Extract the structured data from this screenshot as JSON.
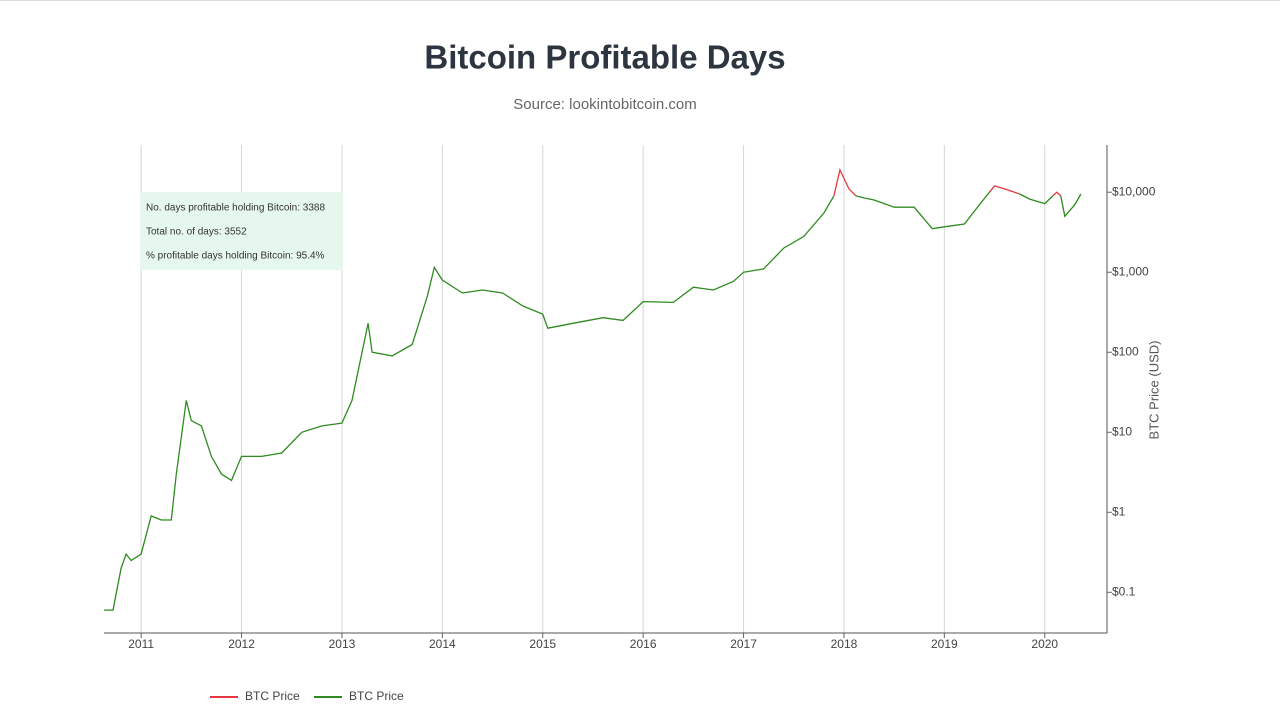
{
  "chart_data": {
    "type": "line",
    "title": "Bitcoin Profitable Days",
    "subtitle": "Source: lookintobitcoin.com",
    "y_label": "BTC Price (USD)",
    "annotations": [
      "No. days profitable holding Bitcoin: 3388",
      "Total no. of days: 3552",
      "% profitable days holding Bitcoin: 95.4%"
    ],
    "log_scale": true,
    "grid": true,
    "legend": "bottom",
    "xlim": [
      2010.63,
      2020.62
    ],
    "xticks": [
      2011,
      2012,
      2013,
      2014,
      2015,
      2016,
      2017,
      2018,
      2019,
      2020
    ],
    "ylim": [
      0.031,
      38900
    ],
    "yticks": [
      {
        "value": 0.1,
        "label": "$0.1"
      },
      {
        "value": 1,
        "label": "$1"
      },
      {
        "value": 10,
        "label": "$10"
      },
      {
        "value": 100,
        "label": "$100"
      },
      {
        "value": 1000,
        "label": "$1,000"
      },
      {
        "value": 10000,
        "label": "$10,000"
      }
    ],
    "x": [
      2010.63,
      2010.72,
      2010.8,
      2010.85,
      2010.9,
      2011.0,
      2011.1,
      2011.2,
      2011.3,
      2011.35,
      2011.45,
      2011.5,
      2011.6,
      2011.7,
      2011.8,
      2011.9,
      2012.0,
      2012.2,
      2012.4,
      2012.6,
      2012.8,
      2013.0,
      2013.1,
      2013.26,
      2013.3,
      2013.5,
      2013.7,
      2013.85,
      2013.92,
      2014.0,
      2014.2,
      2014.4,
      2014.6,
      2014.8,
      2015.0,
      2015.05,
      2015.3,
      2015.6,
      2015.8,
      2016.0,
      2016.3,
      2016.5,
      2016.7,
      2016.9,
      2017.0,
      2017.2,
      2017.4,
      2017.6,
      2017.8,
      2017.9,
      2017.96,
      2018.05,
      2018.12,
      2018.2,
      2018.3,
      2018.5,
      2018.7,
      2018.88,
      2019.0,
      2019.2,
      2019.35,
      2019.45,
      2019.5,
      2019.6,
      2019.75,
      2019.85,
      2020.0,
      2020.08,
      2020.12,
      2020.16,
      2020.2,
      2020.3,
      2020.36
    ],
    "series": [
      {
        "name": "BTC Price",
        "color": "#e8363e",
        "values": [
          null,
          null,
          null,
          null,
          null,
          null,
          null,
          null,
          null,
          null,
          null,
          null,
          null,
          null,
          null,
          null,
          null,
          null,
          null,
          null,
          null,
          null,
          null,
          null,
          null,
          null,
          null,
          null,
          null,
          null,
          null,
          null,
          null,
          null,
          null,
          null,
          null,
          null,
          null,
          null,
          null,
          null,
          null,
          null,
          null,
          null,
          null,
          null,
          null,
          9000,
          19000,
          11000,
          9000,
          null,
          null,
          null,
          null,
          null,
          null,
          null,
          null,
          10000,
          12000,
          11000,
          9500,
          null,
          null,
          9000,
          10000,
          9000,
          null,
          null,
          null
        ]
      },
      {
        "name": "BTC Price",
        "color": "#2e8b1f",
        "values": [
          0.06,
          0.06,
          0.2,
          0.3,
          0.25,
          0.3,
          0.9,
          0.8,
          0.8,
          3,
          25,
          14,
          12,
          5,
          3,
          2.5,
          5,
          5,
          5.5,
          10,
          12,
          13,
          25,
          230,
          100,
          90,
          125,
          500,
          1150,
          800,
          550,
          600,
          550,
          380,
          300,
          200,
          230,
          270,
          250,
          430,
          420,
          650,
          600,
          770,
          1000,
          1100,
          2000,
          2800,
          5500,
          9000,
          null,
          null,
          9000,
          8500,
          8000,
          6500,
          6500,
          3500,
          3700,
          4000,
          7000,
          10000,
          null,
          null,
          9500,
          8200,
          7200,
          9000,
          null,
          9000,
          5000,
          7000,
          9500
        ]
      }
    ]
  }
}
